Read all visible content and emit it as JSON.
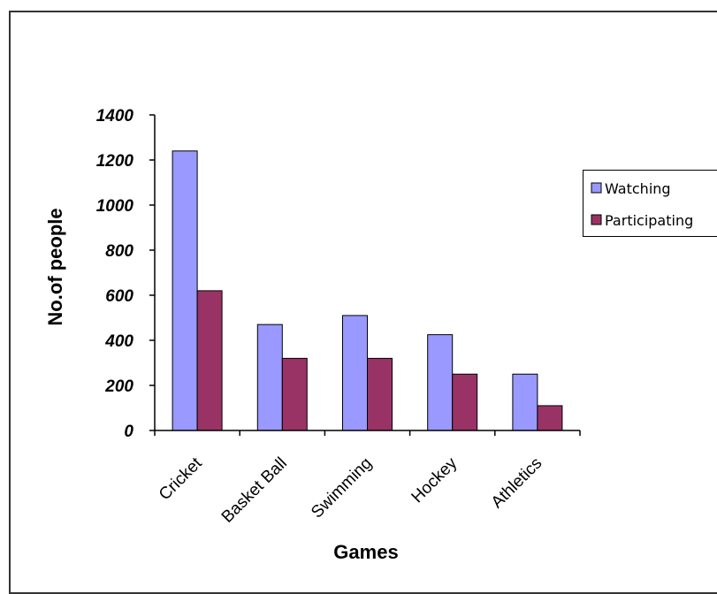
{
  "chart_data": {
    "type": "bar",
    "title": "",
    "xlabel": "Games",
    "ylabel": "No.of people",
    "categories": [
      "Cricket",
      "Basket Ball",
      "Swimming",
      "Hockey",
      "Athletics"
    ],
    "series": [
      {
        "name": "Watching",
        "color": "#9999FF",
        "values": [
          1240,
          470,
          510,
          425,
          250
        ]
      },
      {
        "name": "Participating",
        "color": "#993366",
        "values": [
          620,
          320,
          320,
          250,
          110
        ]
      }
    ],
    "ylim": [
      0,
      1400
    ],
    "yticks": [
      0,
      200,
      400,
      600,
      800,
      1000,
      1200,
      1400
    ],
    "grid": false,
    "legend_position": "right"
  }
}
